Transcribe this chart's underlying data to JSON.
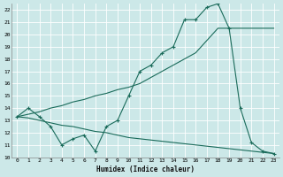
{
  "xlabel": "Humidex (Indice chaleur)",
  "bg_color": "#cce8e8",
  "grid_color": "#ffffff",
  "line_color": "#1a6b5a",
  "xlim": [
    -0.5,
    23.5
  ],
  "ylim": [
    10,
    22.5
  ],
  "xticks": [
    0,
    1,
    2,
    3,
    4,
    5,
    6,
    7,
    8,
    9,
    10,
    11,
    12,
    13,
    14,
    15,
    16,
    17,
    18,
    19,
    20,
    21,
    22,
    23
  ],
  "yticks": [
    10,
    11,
    12,
    13,
    14,
    15,
    16,
    17,
    18,
    19,
    20,
    21,
    22
  ],
  "line_jagged_x": [
    0,
    1,
    2,
    3,
    4,
    5,
    6,
    7,
    8,
    9,
    10,
    11,
    12,
    13,
    14,
    15,
    16,
    17,
    18,
    19,
    20,
    21,
    22,
    23
  ],
  "line_jagged_y": [
    13.3,
    14.0,
    13.3,
    12.5,
    11.0,
    11.5,
    11.8,
    10.5,
    12.5,
    13.0,
    15.0,
    17.0,
    17.5,
    18.5,
    19.0,
    21.2,
    21.2,
    22.2,
    22.5,
    20.5,
    14.0,
    11.2,
    10.5,
    10.3
  ],
  "line_upper_x": [
    0,
    1,
    2,
    3,
    4,
    5,
    6,
    7,
    8,
    9,
    10,
    11,
    12,
    13,
    14,
    15,
    16,
    17,
    18,
    19,
    20,
    21,
    22,
    23
  ],
  "line_upper_y": [
    13.3,
    13.5,
    13.7,
    14.0,
    14.2,
    14.5,
    14.7,
    15.0,
    15.2,
    15.5,
    15.7,
    16.0,
    16.5,
    17.0,
    17.5,
    18.0,
    18.5,
    19.5,
    20.5,
    20.5,
    20.5,
    20.5,
    20.5,
    20.5
  ],
  "line_lower_x": [
    0,
    1,
    2,
    3,
    4,
    5,
    6,
    7,
    8,
    9,
    10,
    11,
    12,
    13,
    14,
    15,
    16,
    17,
    18,
    19,
    20,
    21,
    22,
    23
  ],
  "line_lower_y": [
    13.3,
    13.2,
    13.0,
    12.8,
    12.6,
    12.5,
    12.3,
    12.1,
    12.0,
    11.8,
    11.6,
    11.5,
    11.4,
    11.3,
    11.2,
    11.1,
    11.0,
    10.9,
    10.8,
    10.7,
    10.6,
    10.5,
    10.4,
    10.3
  ]
}
